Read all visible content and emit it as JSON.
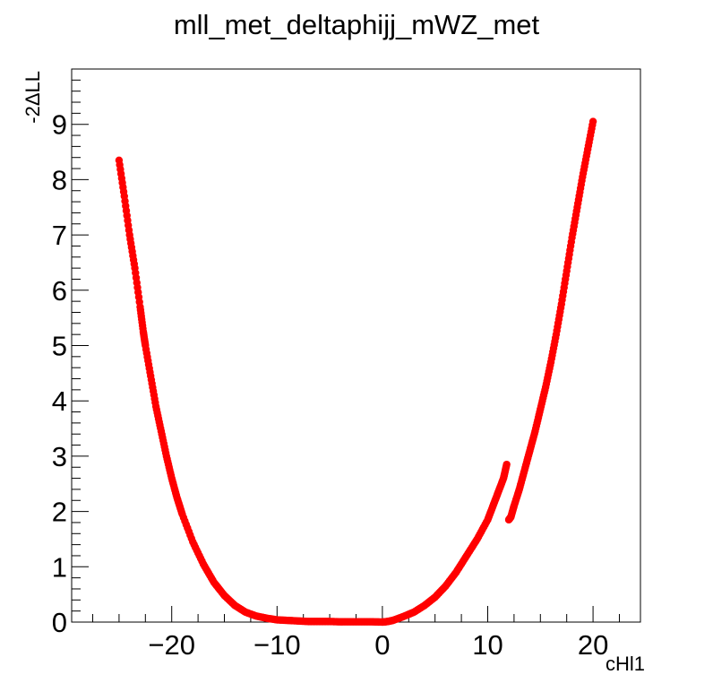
{
  "chart_data": {
    "type": "scatter",
    "title": "mll_met_deltaphijj_mWZ_met",
    "xlabel": "cHl1",
    "ylabel": "-2ΔLL",
    "xlim": [
      -29.5,
      24.5
    ],
    "ylim": [
      0,
      10
    ],
    "x_ticks": [
      -20,
      -10,
      0,
      10,
      20
    ],
    "x_tick_labels": [
      "−20",
      "−10",
      "0",
      "10",
      "20"
    ],
    "y_ticks": [
      0,
      1,
      2,
      3,
      4,
      5,
      6,
      7,
      8,
      9
    ],
    "y_tick_labels": [
      "0",
      "1",
      "2",
      "3",
      "4",
      "5",
      "6",
      "7",
      "8",
      "9"
    ],
    "grid": false,
    "legend": "none",
    "marker_color": "#ff0000",
    "series": [
      {
        "x": [
          -25.0,
          -24.5,
          -24.0,
          -23.5,
          -23.0,
          -22.7,
          -22.5,
          -22.0,
          -21.5,
          -21.0,
          -20.5,
          -20.0,
          -19.5,
          -19.0,
          -18.0,
          -17.0,
          -16.0,
          -15.0,
          -14.0,
          -13.0,
          -12.0,
          -11.0,
          -10.0,
          -9.0,
          -8.0,
          -7.0,
          -6.0,
          -5.0,
          -4.0,
          -3.0,
          -2.0,
          -1.0,
          0.0,
          0.5,
          1.0,
          2.0,
          3.0,
          4.0,
          5.0,
          6.0,
          7.0,
          8.0,
          9.0,
          10.0,
          10.5,
          11.0,
          11.5,
          11.8,
          12.0,
          12.2,
          12.5,
          13.0,
          13.5,
          14.0,
          14.5,
          15.0,
          15.5,
          16.0,
          16.5,
          17.0,
          17.5,
          18.0,
          18.5,
          19.0,
          19.5,
          20.0
        ],
        "y": [
          8.35,
          7.7,
          7.0,
          6.4,
          5.7,
          5.25,
          5.0,
          4.45,
          3.9,
          3.45,
          3.0,
          2.6,
          2.25,
          1.95,
          1.45,
          1.05,
          0.72,
          0.48,
          0.3,
          0.18,
          0.11,
          0.07,
          0.04,
          0.03,
          0.02,
          0.01,
          0.01,
          0.01,
          0.005,
          0.005,
          0.005,
          0.005,
          0.0,
          0.01,
          0.03,
          0.1,
          0.18,
          0.3,
          0.45,
          0.65,
          0.9,
          1.2,
          1.5,
          1.85,
          2.1,
          2.35,
          2.6,
          2.85,
          1.85,
          1.9,
          2.1,
          2.4,
          2.75,
          3.1,
          3.45,
          3.85,
          4.25,
          4.7,
          5.2,
          5.75,
          6.35,
          6.95,
          7.5,
          8.05,
          8.55,
          9.05
        ]
      }
    ]
  }
}
